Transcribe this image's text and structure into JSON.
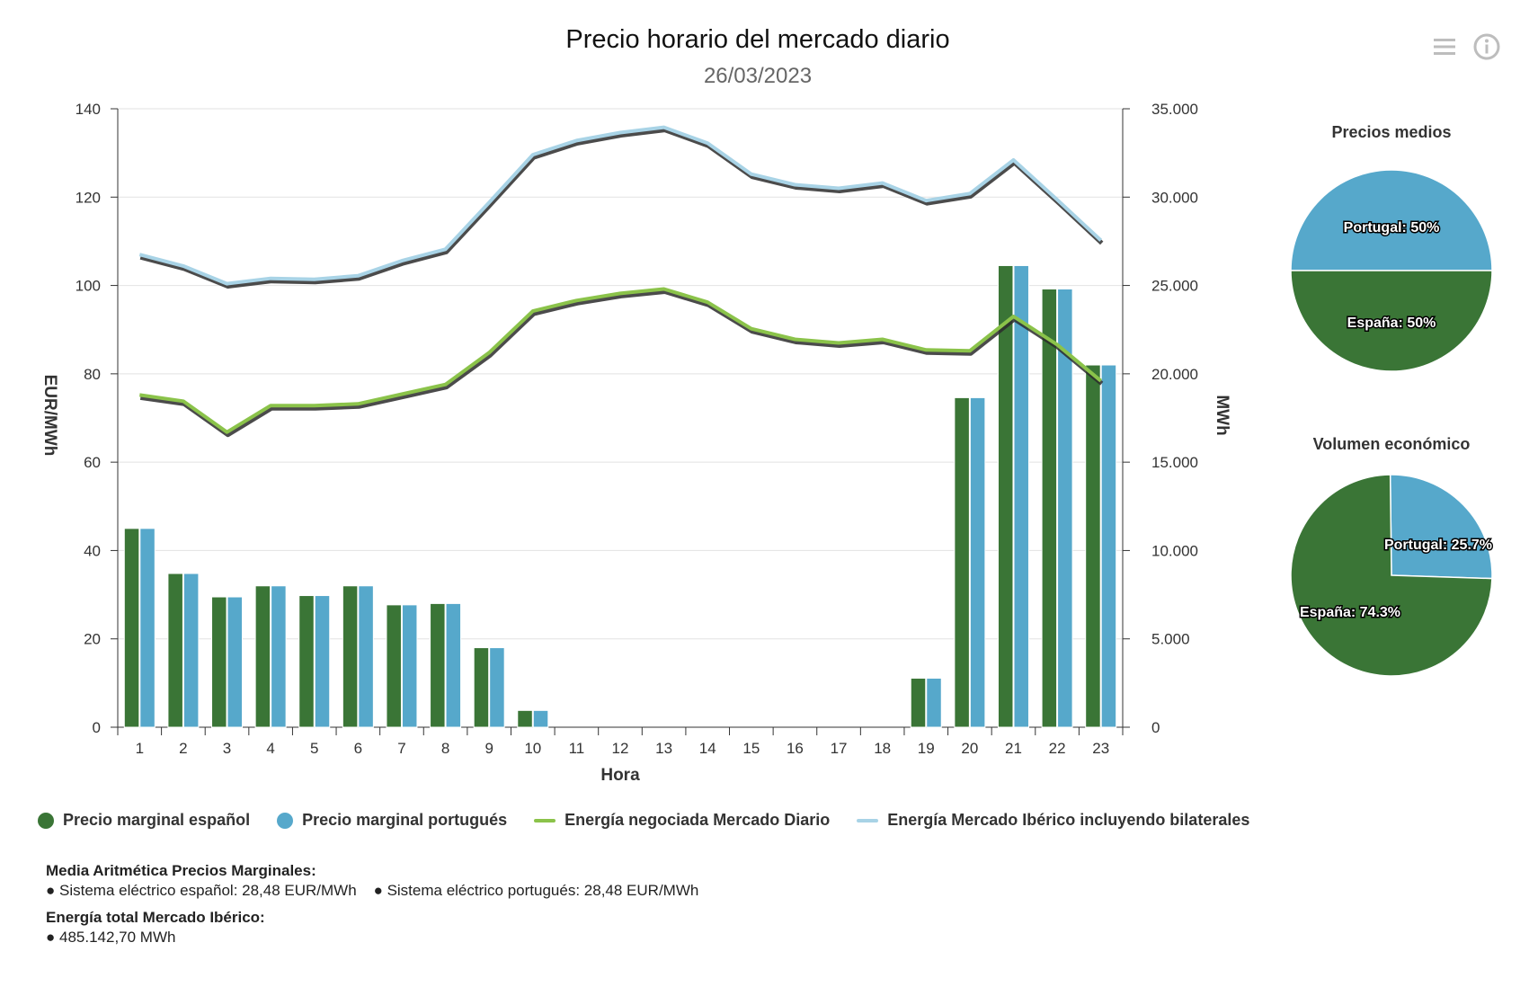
{
  "title": "Precio horario del mercado diario",
  "subtitle": "26/03/2023",
  "icons": {
    "menu": "menu-icon",
    "info": "info-icon"
  },
  "colors": {
    "spain": "#3a7536",
    "portugal": "#56a8cb",
    "energy_md": "#8bc34a",
    "energy_iberico": "#a8d3e6"
  },
  "chart_data": [
    {
      "type": "bar",
      "categories": [
        "1",
        "2",
        "3",
        "4",
        "5",
        "6",
        "7",
        "8",
        "9",
        "10",
        "11",
        "12",
        "13",
        "14",
        "15",
        "16",
        "17",
        "18",
        "19",
        "20",
        "21",
        "22",
        "23"
      ],
      "xlabel": "Hora",
      "ylabel": "EUR/MWh",
      "ylabel_right": "MWh",
      "ylim": [
        0,
        140
      ],
      "ylim_right": [
        0,
        35000
      ],
      "y_ticks": [
        "0",
        "20",
        "40",
        "60",
        "80",
        "100",
        "120",
        "140"
      ],
      "y_right_ticks": [
        "0",
        "5.000",
        "10.000",
        "15.000",
        "20.000",
        "25.000",
        "30.000",
        "35.000"
      ],
      "grid": true,
      "legend_position": "bottom",
      "series": [
        {
          "name": "Precio marginal español",
          "type": "bar",
          "axis": "left",
          "values": [
            45.0,
            34.8,
            29.5,
            32.0,
            29.8,
            32.0,
            27.7,
            28.0,
            18.0,
            3.8,
            0,
            0,
            0,
            0,
            0,
            0,
            0,
            0,
            11.1,
            74.6,
            104.5,
            99.2,
            82.0
          ]
        },
        {
          "name": "Precio marginal portugués",
          "type": "bar",
          "axis": "left",
          "values": [
            45.0,
            34.8,
            29.5,
            32.0,
            29.8,
            32.0,
            27.7,
            28.0,
            18.0,
            3.8,
            0,
            0,
            0,
            0,
            0,
            0,
            0,
            0,
            11.1,
            74.6,
            104.5,
            99.2,
            82.0
          ]
        },
        {
          "name": "Energía negociada Mercado Diario",
          "type": "line",
          "axis": "right",
          "values": [
            18800,
            18450,
            16700,
            18200,
            18200,
            18300,
            18850,
            19400,
            21200,
            23550,
            24150,
            24550,
            24800,
            24050,
            22550,
            21950,
            21750,
            21950,
            21350,
            21300,
            23250,
            21650,
            19600
          ]
        },
        {
          "name": "Energía Mercado Ibérico incluyendo bilaterales",
          "type": "line",
          "axis": "right",
          "values": [
            26750,
            26100,
            25100,
            25400,
            25350,
            25550,
            26400,
            27050,
            29700,
            32400,
            33200,
            33650,
            33950,
            33050,
            31300,
            30700,
            30500,
            30800,
            29800,
            30200,
            32100,
            29850,
            27550
          ]
        }
      ]
    },
    {
      "type": "pie",
      "title": "Precios medios",
      "series": [
        {
          "name": "Portugal",
          "value": 50,
          "label": "Portugal: 50%"
        },
        {
          "name": "España",
          "value": 50,
          "label": "España: 50%"
        }
      ]
    },
    {
      "type": "pie",
      "title": "Volumen económico",
      "series": [
        {
          "name": "Portugal",
          "value": 25.7,
          "label": "Portugal: 25.7%"
        },
        {
          "name": "España",
          "value": 74.3,
          "label": "España: 74.3%"
        }
      ]
    }
  ],
  "legend": [
    {
      "label": "Precio marginal español",
      "kind": "dot",
      "color": "#3a7536"
    },
    {
      "label": "Precio marginal portugués",
      "kind": "dot",
      "color": "#56a8cb"
    },
    {
      "label": "Energía negociada Mercado Diario",
      "kind": "line",
      "color": "#8bc34a"
    },
    {
      "label": "Energía Mercado Ibérico incluyendo bilaterales",
      "kind": "line",
      "color": "#a8d3e6"
    }
  ],
  "summary": {
    "media_title": "Media Aritmética Precios Marginales:",
    "media_line": "● Sistema eléctrico español: 28,48 EUR/MWh    ● Sistema eléctrico portugués: 28,48 EUR/MWh",
    "energia_title": "Energía total Mercado Ibérico:",
    "energia_line": "● 485.142,70 MWh"
  }
}
